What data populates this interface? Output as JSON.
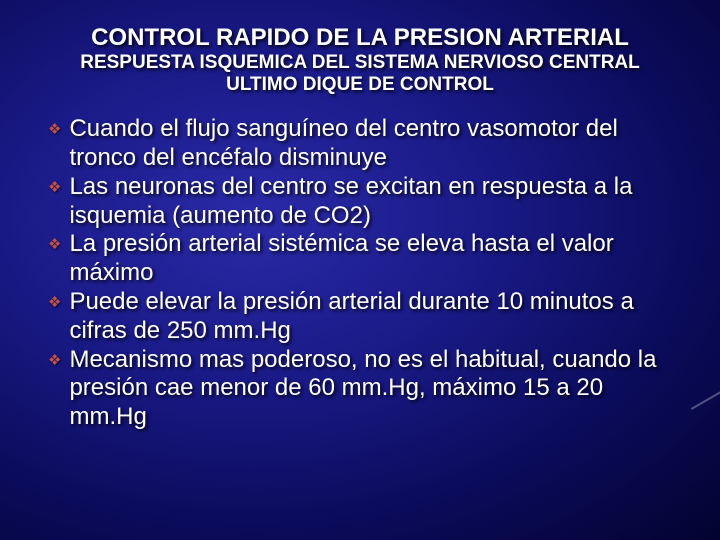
{
  "slide": {
    "background_gradient": {
      "type": "radial",
      "center_color": "#2a2aa8",
      "mid_color": "#1a1a88",
      "outer_color": "#0a0a58",
      "edge_color": "#030330"
    },
    "text_color": "#ffffff",
    "shadow_color": "#000000",
    "title": {
      "main": "CONTROL RAPIDO DE LA PRESION ARTERIAL",
      "sub_line1": "RESPUESTA ISQUEMICA DEL SISTEMA NERVIOSO CENTRAL",
      "sub_line2": "ULTIMO DIQUE DE CONTROL",
      "main_fontsize": 24,
      "sub_fontsize": 19,
      "font_weight": "bold",
      "align": "center"
    },
    "bullet_style": {
      "glyph": "❖",
      "glyph_color": "#c0504d",
      "glyph_fontsize": 15,
      "text_fontsize": 24,
      "line_height": 1.2
    },
    "bullets": [
      "Cuando el flujo sanguíneo del centro vasomotor del tronco del encéfalo disminuye",
      "Las neuronas del centro se excitan en respuesta a la isquemia (aumento de CO2)",
      "La presión arterial sistémica se eleva hasta el valor máximo",
      "Puede elevar la presión arterial durante 10 minutos a cifras de 250 mm.Hg",
      "Mecanismo mas poderoso, no es el habitual, cuando la presión cae menor de 60 mm.Hg, máximo 15 a 20 mm.Hg"
    ]
  }
}
